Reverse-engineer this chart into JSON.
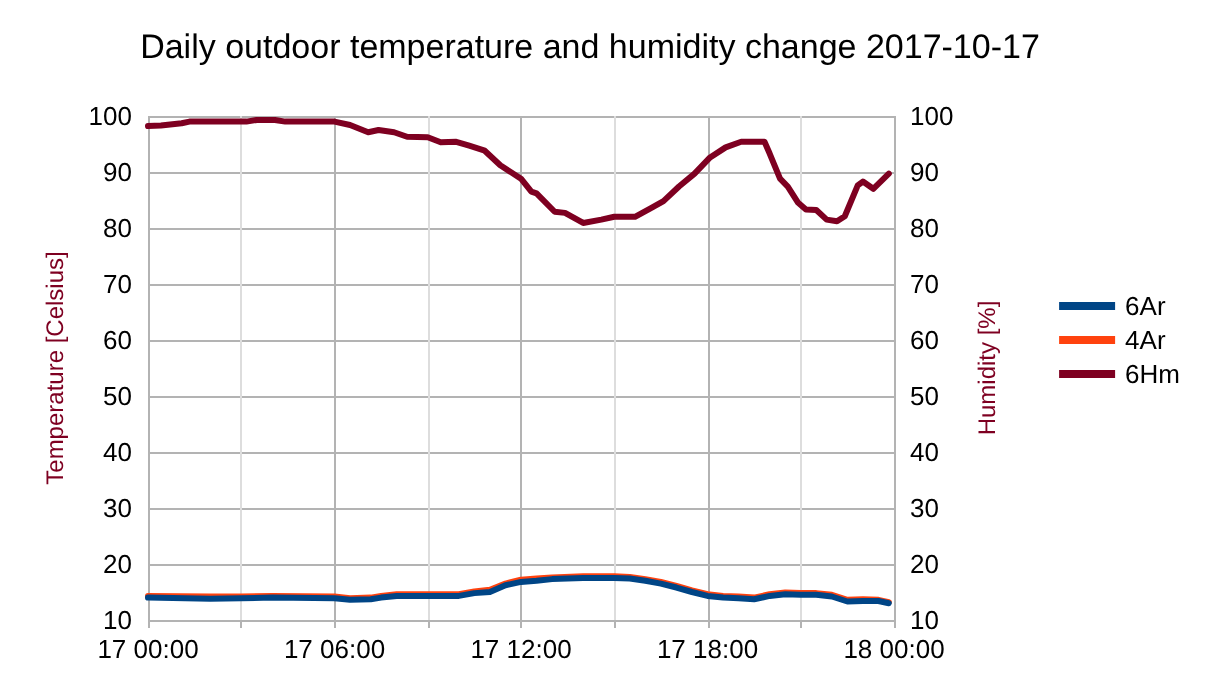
{
  "chart_data": {
    "type": "line",
    "title": "Daily outdoor temperature and humidity change 2017-10-17",
    "xlabel": null,
    "ylabel": "Temperature [Celsius]",
    "y2label": "Humidity [%]",
    "xlim": [
      "2017-10-17T00:00",
      "2017-10-18T00:00"
    ],
    "xticks": [
      {
        "value": "2017-10-17T00:00",
        "label": "17 00:00"
      },
      {
        "value": "2017-10-17T03:00",
        "label": null
      },
      {
        "value": "2017-10-17T06:00",
        "label": "17 06:00"
      },
      {
        "value": "2017-10-17T09:00",
        "label": null
      },
      {
        "value": "2017-10-17T12:00",
        "label": "17 12:00"
      },
      {
        "value": "2017-10-17T15:00",
        "label": null
      },
      {
        "value": "2017-10-17T18:00",
        "label": "17 18:00"
      },
      {
        "value": "2017-10-17T21:00",
        "label": null
      },
      {
        "value": "2017-10-18T00:00",
        "label": "18 00:00"
      }
    ],
    "ylim": [
      10,
      100
    ],
    "yticks": [
      10,
      20,
      30,
      40,
      50,
      60,
      70,
      80,
      90,
      100
    ],
    "y2lim": [
      10,
      100
    ],
    "y2ticks": [
      10,
      20,
      30,
      40,
      50,
      60,
      70,
      80,
      90,
      100
    ],
    "grid": true,
    "legend": "right",
    "line_style": "solid",
    "marker": "none",
    "x": [
      "2017-10-17T00:00",
      "2017-10-17T02:00",
      "2017-10-17T03:00",
      "2017-10-17T04:00",
      "2017-10-17T06:00",
      "2017-10-17T06:30",
      "2017-10-17T07:10",
      "2017-10-17T07:30",
      "2017-10-17T08:00",
      "2017-10-17T10:00",
      "2017-10-17T10:30",
      "2017-10-17T11:00",
      "2017-10-17T11:30",
      "2017-10-17T12:00",
      "2017-10-17T12:30",
      "2017-10-17T13:00",
      "2017-10-17T14:00",
      "2017-10-17T15:00",
      "2017-10-17T15:30",
      "2017-10-17T16:00",
      "2017-10-17T16:30",
      "2017-10-17T17:00",
      "2017-10-17T17:30",
      "2017-10-17T18:00",
      "2017-10-17T18:30",
      "2017-10-17T19:00",
      "2017-10-17T19:30",
      "2017-10-17T20:00",
      "2017-10-17T20:30",
      "2017-10-17T21:00",
      "2017-10-17T21:30",
      "2017-10-17T22:00",
      "2017-10-17T22:30",
      "2017-10-17T23:00",
      "2017-10-17T23:30",
      "2017-10-17T23:50"
    ],
    "series": [
      {
        "name": "6Ar",
        "color": "#004586",
        "values": [
          14,
          13.8,
          13.9,
          14,
          13.9,
          13.6,
          13.7,
          14,
          14.3,
          14.3,
          14.8,
          15,
          16.2,
          16.8,
          17,
          17.3,
          17.5,
          17.5,
          17.4,
          17,
          16.5,
          15.8,
          15,
          14.3,
          14,
          13.9,
          13.7,
          14.3,
          14.6,
          14.5,
          14.5,
          14.2,
          13.3,
          13.4,
          13.4,
          13
        ]
      },
      {
        "name": "4Ar",
        "color": "#ff420e",
        "values": [
          14.3,
          14.2,
          14.2,
          14.3,
          14.2,
          13.9,
          14,
          14.3,
          14.6,
          14.6,
          15.1,
          15.4,
          16.5,
          17.2,
          17.4,
          17.6,
          17.8,
          17.8,
          17.7,
          17.3,
          16.8,
          16.1,
          15.3,
          14.6,
          14.3,
          14.2,
          14,
          14.6,
          14.9,
          14.8,
          14.8,
          14.5,
          13.6,
          13.7,
          13.6,
          13.2
        ]
      },
      {
        "name": "6Hm",
        "color": "#7e0021",
        "axis": "y2",
        "x": [
          "2017-10-17T00:00",
          "2017-10-17T00:25",
          "2017-10-17T01:05",
          "2017-10-17T01:20",
          "2017-10-17T03:10",
          "2017-10-17T03:30",
          "2017-10-17T04:05",
          "2017-10-17T04:25",
          "2017-10-17T06:00",
          "2017-10-17T06:30",
          "2017-10-17T07:05",
          "2017-10-17T07:25",
          "2017-10-17T07:55",
          "2017-10-17T08:20",
          "2017-10-17T09:00",
          "2017-10-17T09:25",
          "2017-10-17T09:55",
          "2017-10-17T10:20",
          "2017-10-17T10:50",
          "2017-10-17T11:20",
          "2017-10-17T12:00",
          "2017-10-17T12:20",
          "2017-10-17T12:30",
          "2017-10-17T13:05",
          "2017-10-17T13:25",
          "2017-10-17T14:00",
          "2017-10-17T14:35",
          "2017-10-17T15:00",
          "2017-10-17T15:40",
          "2017-10-17T16:10",
          "2017-10-17T16:35",
          "2017-10-17T17:05",
          "2017-10-17T17:35",
          "2017-10-17T18:05",
          "2017-10-17T18:35",
          "2017-10-17T19:05",
          "2017-10-17T19:50",
          "2017-10-17T20:00",
          "2017-10-17T20:20",
          "2017-10-17T20:35",
          "2017-10-17T20:55",
          "2017-10-17T21:10",
          "2017-10-17T21:30",
          "2017-10-17T21:50",
          "2017-10-17T22:10",
          "2017-10-17T22:25",
          "2017-10-17T22:50",
          "2017-10-17T23:00",
          "2017-10-17T23:20",
          "2017-10-17T23:50"
        ],
        "values": [
          98.2,
          98.3,
          98.7,
          99,
          99,
          99.3,
          99.3,
          99,
          99,
          98.4,
          97.1,
          97.5,
          97.1,
          96.3,
          96.2,
          95.3,
          95.4,
          94.7,
          93.8,
          91.2,
          88.8,
          86.5,
          86.2,
          82.9,
          82.7,
          80.9,
          81.5,
          82,
          82,
          83.5,
          84.8,
          87.4,
          89.7,
          92.6,
          94.4,
          95.4,
          95.4,
          93.3,
          88.8,
          87.4,
          84.5,
          83.3,
          83.2,
          81.5,
          81.2,
          82.1,
          87.6,
          88.3,
          87,
          89.7
        ]
      }
    ]
  }
}
